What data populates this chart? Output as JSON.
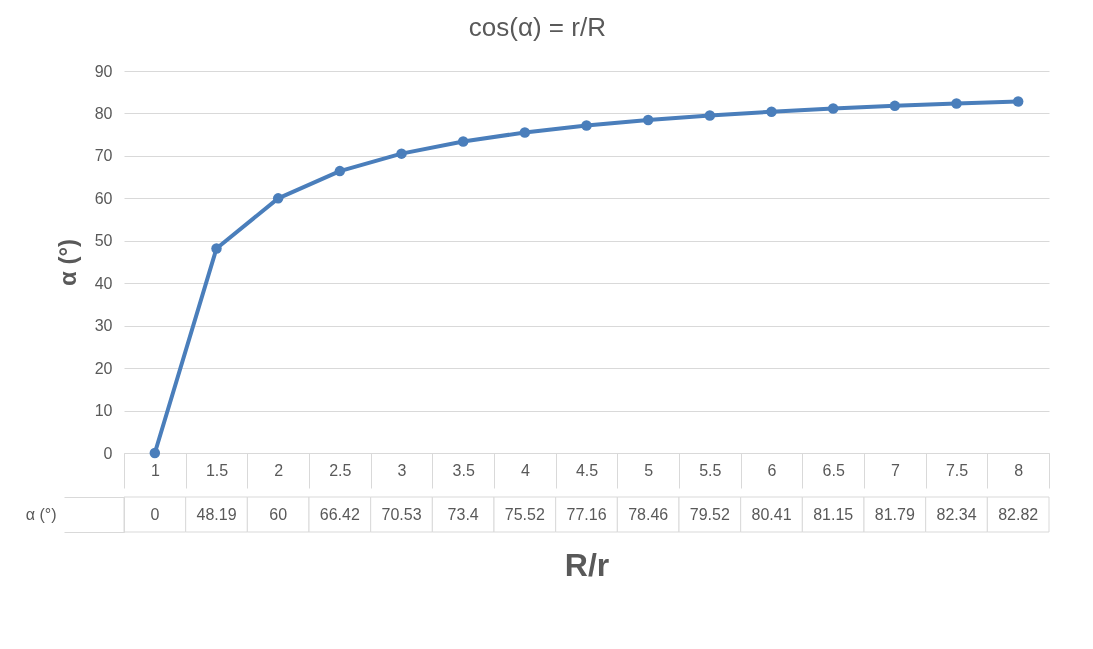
{
  "chart_data": {
    "type": "line",
    "title": "cos(α) = r/R",
    "xlabel": "R/r",
    "ylabel": "α (°)",
    "categories": [
      "1",
      "1.5",
      "2",
      "2.5",
      "3",
      "3.5",
      "4",
      "4.5",
      "5",
      "5.5",
      "6",
      "6.5",
      "7",
      "7.5",
      "8"
    ],
    "series": [
      {
        "name": "α (°)",
        "color": "#4a7ebb",
        "values": [
          0,
          48.19,
          60,
          66.42,
          70.53,
          73.4,
          75.52,
          77.16,
          78.46,
          79.52,
          80.41,
          81.15,
          81.79,
          82.34,
          82.82
        ]
      }
    ],
    "ylim": [
      0,
      90
    ],
    "yticks": [
      0,
      10,
      20,
      30,
      40,
      50,
      60,
      70,
      80,
      90
    ],
    "grid": "y",
    "marker": "circle",
    "line_style": "solid",
    "data_labels": true
  }
}
